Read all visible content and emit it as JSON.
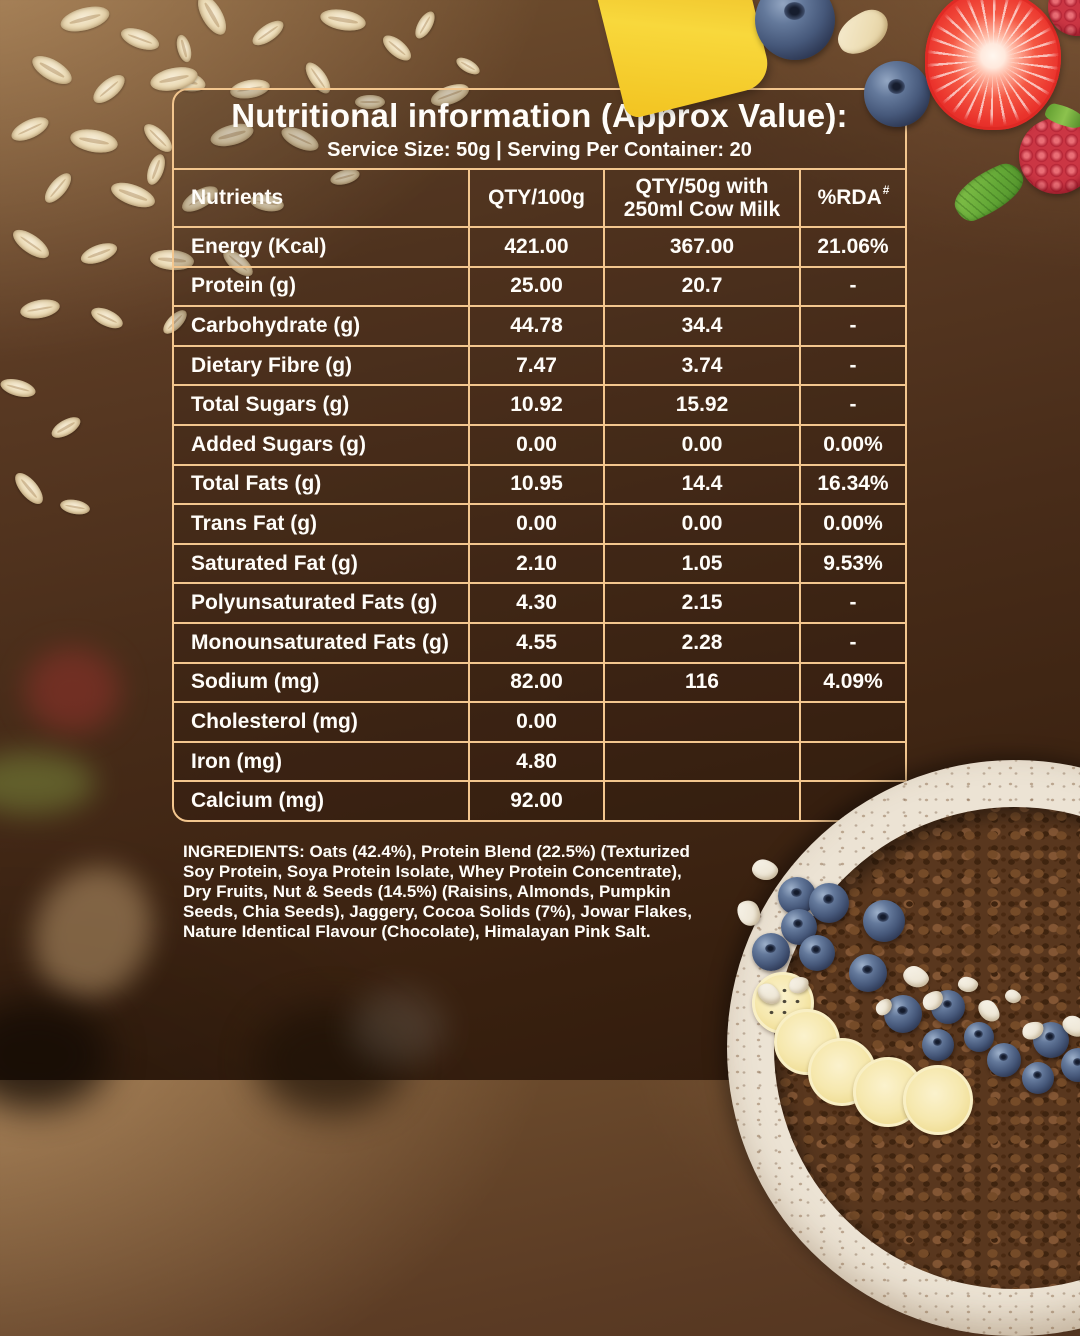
{
  "label": {
    "title": "Nutritional information (Approx Value):",
    "subtitle": "Service Size: 50g | Serving Per Container: 20"
  },
  "table": {
    "columns": [
      {
        "label": "Nutrients"
      },
      {
        "label": "QTY/100g"
      },
      {
        "label": "QTY/50g with 250ml Cow Milk"
      },
      {
        "label": "%RDA",
        "sup": "#"
      }
    ],
    "rows": [
      {
        "nutrient": "Energy (Kcal)",
        "qty100": "421.00",
        "qty50": "367.00",
        "rda": "21.06%"
      },
      {
        "nutrient": "Protein (g)",
        "qty100": "25.00",
        "qty50": "20.7",
        "rda": "-"
      },
      {
        "nutrient": "Carbohydrate (g)",
        "qty100": "44.78",
        "qty50": "34.4",
        "rda": "-"
      },
      {
        "nutrient": "Dietary Fibre (g)",
        "qty100": "7.47",
        "qty50": "3.74",
        "rda": "-"
      },
      {
        "nutrient": "Total Sugars (g)",
        "qty100": "10.92",
        "qty50": "15.92",
        "rda": "-"
      },
      {
        "nutrient": "Added Sugars (g)",
        "qty100": "0.00",
        "qty50": "0.00",
        "rda": "0.00%"
      },
      {
        "nutrient": "Total Fats (g)",
        "qty100": "10.95",
        "qty50": "14.4",
        "rda": "16.34%"
      },
      {
        "nutrient": "Trans Fat (g)",
        "qty100": "0.00",
        "qty50": "0.00",
        "rda": "0.00%"
      },
      {
        "nutrient": "Saturated Fat (g)",
        "qty100": "2.10",
        "qty50": "1.05",
        "rda": "9.53%"
      },
      {
        "nutrient": "Polyunsaturated Fats (g)",
        "qty100": "4.30",
        "qty50": "2.15",
        "rda": "-"
      },
      {
        "nutrient": "Monounsaturated Fats (g)",
        "qty100": "4.55",
        "qty50": "2.28",
        "rda": "-"
      },
      {
        "nutrient": "Sodium (mg)",
        "qty100": "82.00",
        "qty50": "116",
        "rda": "4.09%"
      },
      {
        "nutrient": "Cholesterol (mg)",
        "qty100": "0.00",
        "qty50": "",
        "rda": ""
      },
      {
        "nutrient": "Iron (mg)",
        "qty100": "4.80",
        "qty50": "",
        "rda": ""
      },
      {
        "nutrient": "Calcium (mg)",
        "qty100": "92.00",
        "qty50": "",
        "rda": ""
      }
    ]
  },
  "ingredients": "INGREDIENTS: Oats (42.4%), Protein Blend (22.5%) (Texturized Soy Protein, Soya Protein Isolate, Whey Protein Concentrate), Dry Fruits,  Nut & Seeds (14.5%) (Raisins, Almonds, Pumpkin Seeds, Chia Seeds), Jaggery, Cocoa Solids (7%), Jowar Flakes, Nature Identical Flavour (Chocolate), Himalayan Pink Salt.",
  "colors": {
    "line": "#F3C68E",
    "text": "#FFFDF9",
    "background_dark": "#38200F",
    "background_light": "#8F6B47"
  },
  "decor": {
    "images": [
      "oat-flakes",
      "mango-piece",
      "blueberries",
      "almond-slice",
      "strawberry-half",
      "raspberry",
      "mint-leaf",
      "smoothie-bowl",
      "banana-slices",
      "coconut-flakes"
    ]
  }
}
